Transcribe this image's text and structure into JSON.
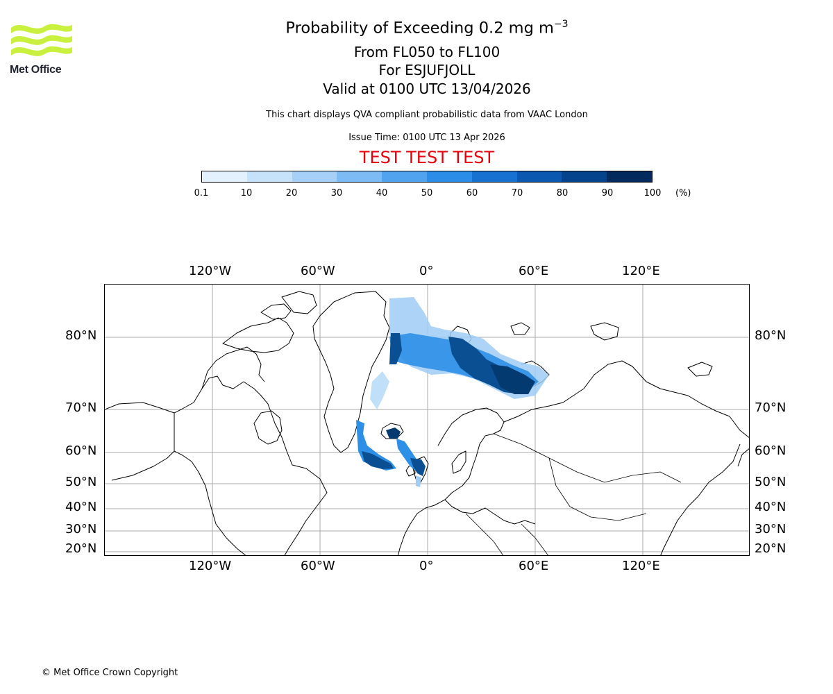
{
  "header": {
    "logo_text": "Met Office",
    "logo_color": "#c8f03c",
    "title_main": "Probability of Exceeding 0.2 mg m",
    "title_exponent": "−3",
    "line_levels": "From FL050 to FL100",
    "line_volcano": "For ESJUFJOLL",
    "line_valid": "Valid at 0100 UTC 13/04/2026",
    "note_source": "This chart displays QVA compliant probabilistic data from VAAC London",
    "note_issue": "Issue Time: 0100 UTC 13 Apr 2026",
    "test_banner": "TEST TEST TEST",
    "test_color": "#e8000b"
  },
  "colorbar": {
    "unit": "(%)",
    "ticks": [
      "0.1",
      "10",
      "20",
      "30",
      "40",
      "50",
      "60",
      "70",
      "80",
      "90",
      "100"
    ],
    "colors": [
      "#e3f0fd",
      "#c6e2fb",
      "#a6d0f8",
      "#7dbbf5",
      "#52a3ef",
      "#2b8de8",
      "#1671d0",
      "#0a58b0",
      "#05448c",
      "#022a5c"
    ]
  },
  "map": {
    "lon_labels": [
      "120°W",
      "60°W",
      "0°",
      "60°E",
      "120°E"
    ],
    "lat_labels": [
      "80°N",
      "70°N",
      "60°N",
      "50°N",
      "40°N",
      "30°N",
      "20°N"
    ],
    "gridline_color": "#aaaaaa",
    "plume_colors": {
      "light": "#9fcdf6",
      "mid": "#2e8fe6",
      "dark": "#0a4f92",
      "darkest": "#033a70"
    }
  },
  "footer": {
    "copyright": "© Met Office Crown Copyright"
  }
}
